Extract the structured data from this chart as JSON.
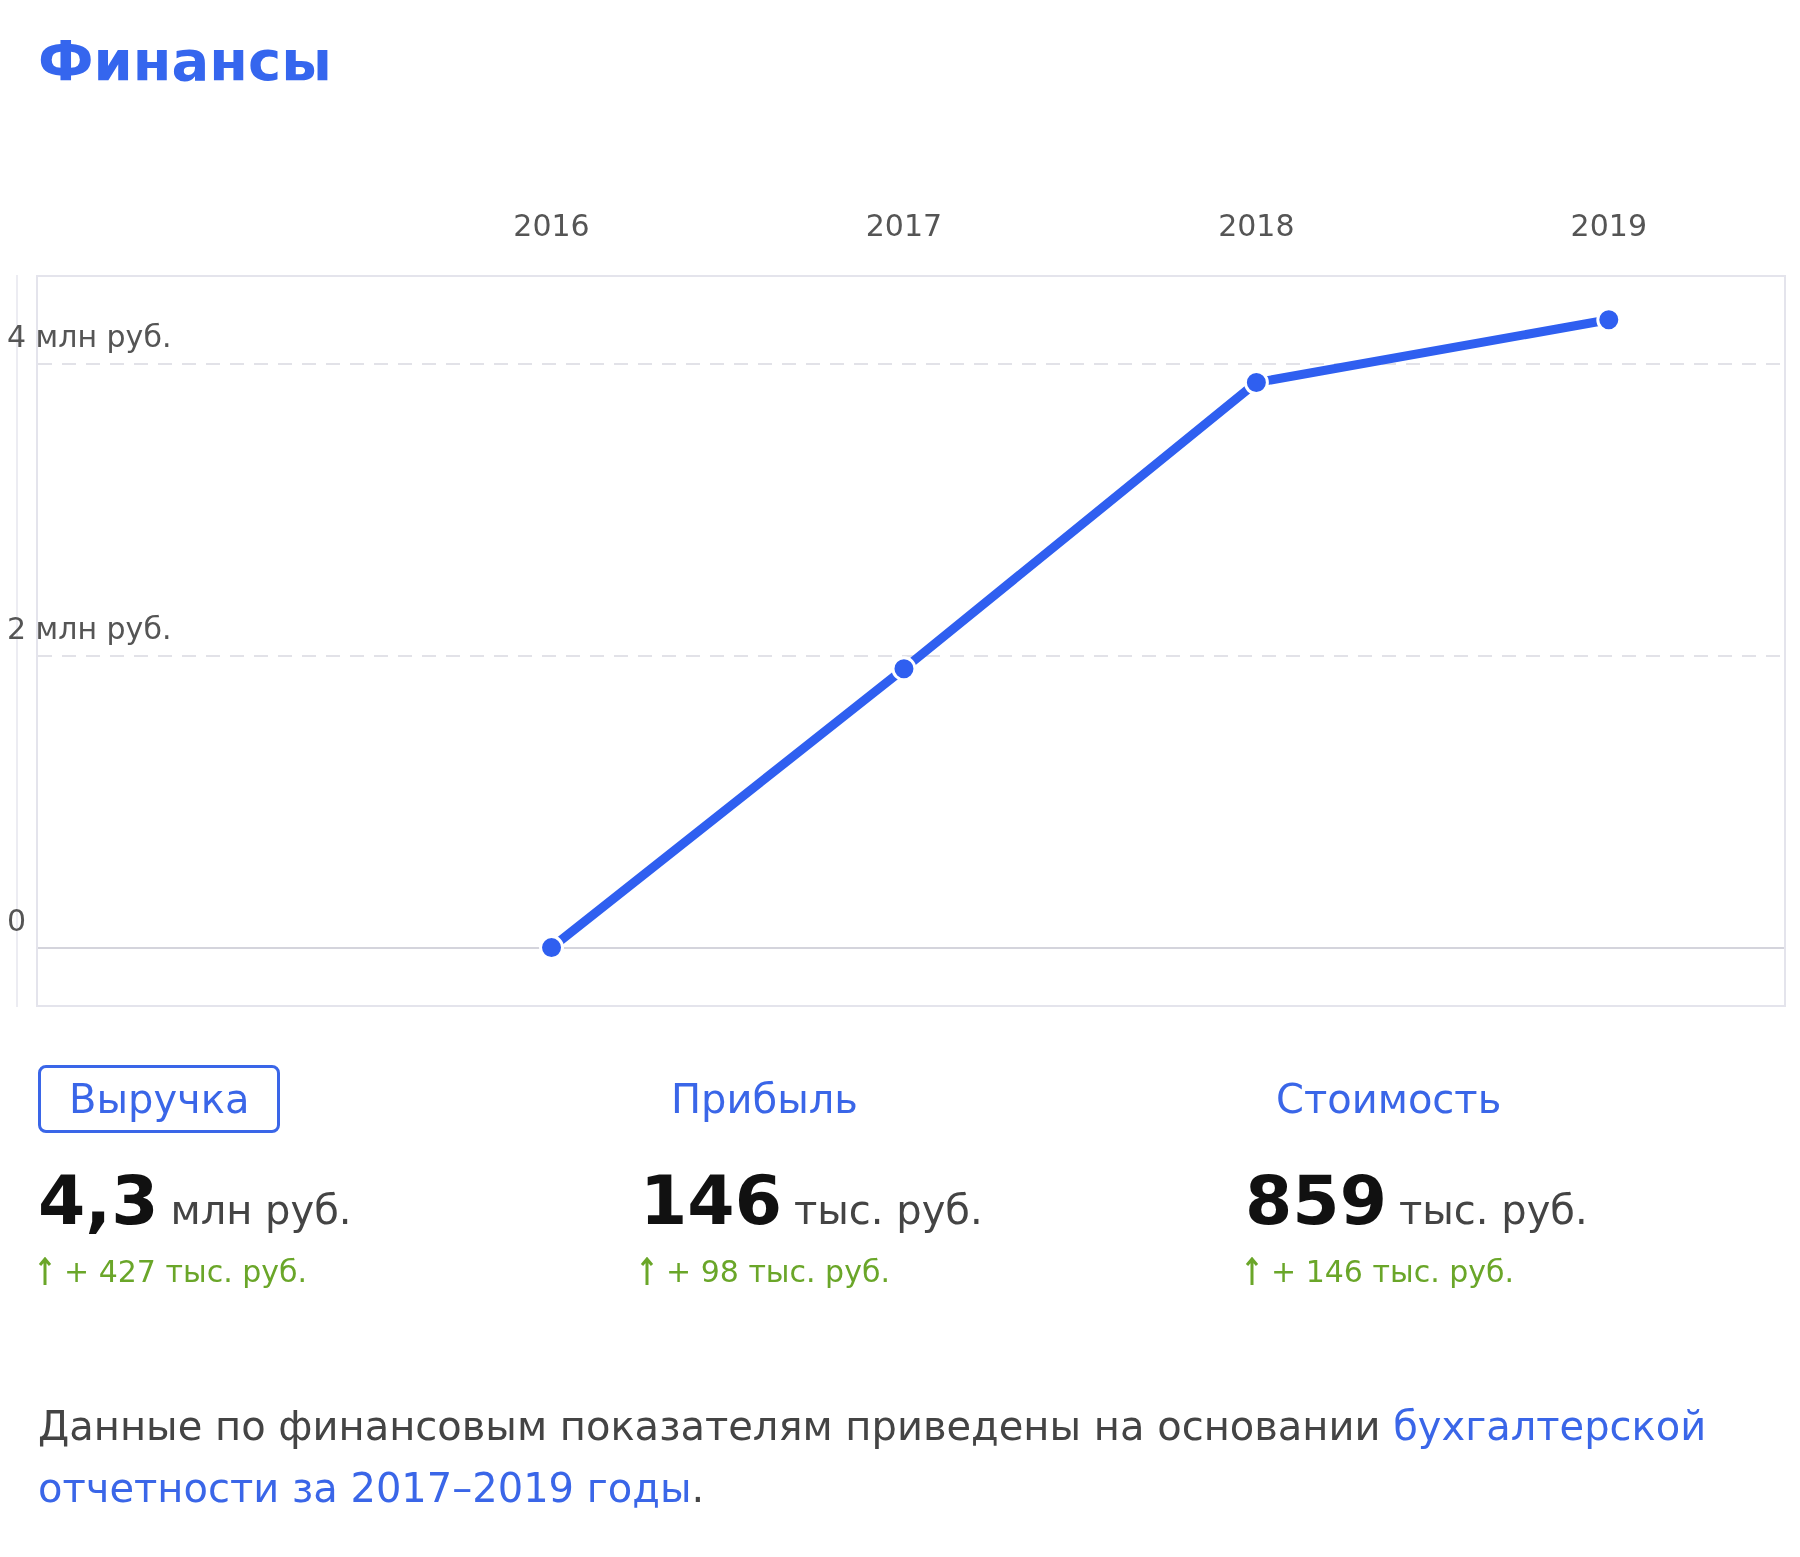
{
  "chart_data": {
    "type": "line",
    "title": "Финансы",
    "x": [
      2016,
      2017,
      2018,
      2019
    ],
    "series": [
      {
        "color": "#2f5ff0",
        "values": [
          0,
          1.91,
          3.87,
          4.3
        ]
      }
    ],
    "xlim": [
      2014.54,
      2019.5
    ],
    "xticks": [
      2016,
      2017,
      2018,
      2019
    ],
    "ylim": [
      -0.4,
      4.6
    ],
    "yticks": [
      {
        "value": 0,
        "label": "0"
      },
      {
        "value": 2,
        "label": "2 млн руб."
      },
      {
        "value": 4,
        "label": "4 млн руб."
      }
    ],
    "grid": "y",
    "marker": "circle",
    "line_style": "solid",
    "legend": false,
    "annotations": [
      "Выручка",
      "Прибыль",
      "Стоимость",
      "4,3 млн руб.",
      "146 тыс. руб.",
      "859 тыс. руб.",
      "+ 427 тыс. руб.",
      "+ 98 тыс. руб.",
      "+ 146 тыс. руб.",
      "Данные по финансовым показателям приведены на основании ",
      "бухгалтерской отчетности за 2017–2019 годы",
      "."
    ]
  }
}
